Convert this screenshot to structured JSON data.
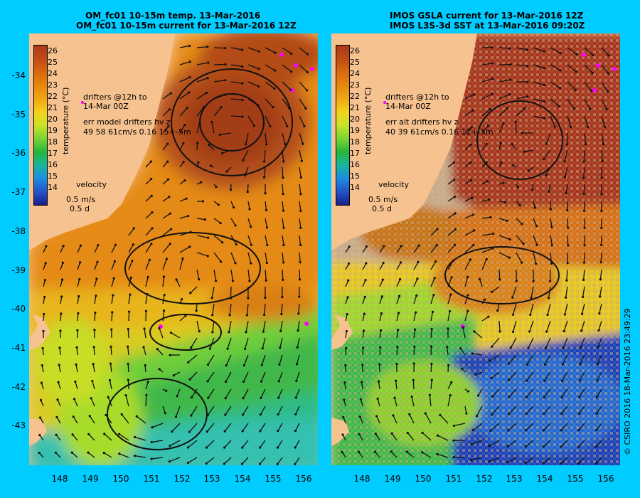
{
  "left_panel": {
    "title_line1": "OM_fc01 10-15m temp. 13-Mar-2016",
    "title_line2": "OM_fc01 10-15m current for 13-Mar-2016 12Z",
    "legend_drifters": "drifters @12h to",
    "legend_drifters_date": "14-Mar 00Z",
    "legend_err": "err model drifters hv z",
    "legend_err_values": "49 58 61cm/s 0.16 15+-5m"
  },
  "right_panel": {
    "title_line1": "IMOS GSLA current for 13-Mar-2016 12Z",
    "title_line2": "IMOS L3S-3d SST at 13-Mar-2016 09:20Z",
    "legend_drifters": "drifters @12h to",
    "legend_drifters_date": "14-Mar 00Z",
    "legend_err": "err alt drifters hv z",
    "legend_err_values": "40 39 61cm/s 0.16 12+-5m"
  },
  "velocity_legend": {
    "label": "velocity",
    "speed": "0.5 m/s",
    "duration": "0.5 d"
  },
  "colorbar": {
    "title": "temperature (°C)",
    "ticks": [
      "26",
      "25",
      "24",
      "23",
      "22",
      "21",
      "20",
      "19",
      "18",
      "17",
      "16",
      "15",
      "14"
    ],
    "colors": [
      "#a83a1a",
      "#c24a14",
      "#d9680f",
      "#e6870d",
      "#f0a613",
      "#f5d21d",
      "#c9e227",
      "#7bd434",
      "#27b53c",
      "#19b59a",
      "#1e8ce0",
      "#2453c8",
      "#1b1e8c"
    ]
  },
  "y_axis_labels": [
    "-34",
    "-35",
    "-36",
    "-37",
    "-38",
    "-39",
    "-40",
    "-41",
    "-42",
    "-43"
  ],
  "x_axis_labels": [
    "148",
    "149",
    "150",
    "151",
    "152",
    "153",
    "154",
    "155",
    "156"
  ],
  "copyright": "© CSIRO 2016   18-Mar-2016 23:49:29",
  "colors": {
    "land": "#f6c28f",
    "frame": "#00ccff",
    "drifter": "#ff00ff",
    "missing": "#c9ad8a"
  }
}
